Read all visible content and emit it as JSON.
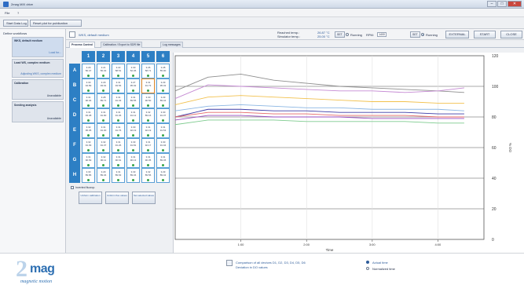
{
  "window": {
    "title": "2mag MIX drive"
  },
  "menu": [
    {
      "label": "File"
    },
    {
      "label": "?"
    }
  ],
  "toolbar": {
    "buttons": [
      {
        "label": "Start Data Log"
      },
      {
        "label": "Reset plot for publication"
      }
    ]
  },
  "left": {
    "header": "Define workflows",
    "items": [
      {
        "title": "WKS, default medium",
        "sub": "Load for...",
        "selected": true
      },
      {
        "title": "Load WS, complex medium",
        "sub": "Adjusting WKS, complex medium",
        "selected": false
      },
      {
        "title": "Calibration",
        "sub": "Unavailable",
        "selected": false
      },
      {
        "title": "Seeding analysis",
        "sub": "Unavailable",
        "selected": false
      }
    ]
  },
  "header": {
    "workflow_title": "WKS, default medium",
    "reached_temp_label": "Reached temp.:",
    "reached_temp_value": "26.87 °C",
    "simulator_temp_label": "Simulator temp.:",
    "simulator_temp_value": "25.00 °C",
    "set_label": "SET",
    "running_label": "Running",
    "rpm_label": "RPM:",
    "rpm_value": "1400",
    "set2_label": "SET",
    "running2_label": "Running",
    "buttons": [
      {
        "label": "EXTERNAL"
      },
      {
        "label": "START"
      },
      {
        "label": "CLOSE"
      }
    ]
  },
  "tabs": [
    {
      "label": "Process Control",
      "active": true
    },
    {
      "label": "Calibration / Export to SDR file",
      "active": false
    },
    {
      "label": "Log messages",
      "active": false
    }
  ],
  "plate": {
    "columns": [
      "1",
      "2",
      "3",
      "4",
      "5",
      "6"
    ],
    "rows": [
      {
        "label": "A",
        "cells": [
          [
            "3.29",
            "50.47"
          ],
          [
            "3.21",
            "56.32"
          ],
          [
            "3.22",
            "58.51"
          ],
          [
            "3.30",
            "52.36"
          ],
          [
            "3.26",
            "58.71"
          ],
          [
            "3.28",
            "55.00"
          ]
        ]
      },
      {
        "label": "B",
        "cells": [
          [
            "3.30",
            "94.89"
          ],
          [
            "3.29",
            "93.91"
          ],
          [
            "3.31",
            "93.56"
          ],
          [
            "3.27",
            "95.02"
          ],
          [
            "3.31",
            "91.73"
          ],
          [
            "3.29",
            "95.32"
          ]
        ]
      },
      {
        "label": "C",
        "cells": [
          [
            "3.31",
            "90.04"
          ],
          [
            "3.28",
            "89.71"
          ],
          [
            "3.31",
            "91.33"
          ],
          [
            "3.31",
            "89.55"
          ],
          [
            "3.30",
            "90.50"
          ],
          [
            "3.29",
            "89.42"
          ]
        ]
      },
      {
        "label": "D",
        "cells": [
          [
            "3.31",
            "93.38"
          ],
          [
            "3.31",
            "91.90"
          ],
          [
            "3.31",
            "91.36"
          ],
          [
            "3.31",
            "91.12"
          ],
          [
            "3.32",
            "89.16"
          ],
          [
            "3.30",
            "91.37"
          ]
        ]
      },
      {
        "label": "E",
        "cells": [
          [
            "3.32",
            "95.35"
          ],
          [
            "3.31",
            "91.30"
          ],
          [
            "3.31",
            "91.76"
          ],
          [
            "3.30",
            "92.19"
          ],
          [
            "3.31",
            "92.19"
          ],
          [
            "3.31",
            "91.53"
          ]
        ]
      },
      {
        "label": "F",
        "cells": [
          [
            "3.32",
            "91.09"
          ],
          [
            "3.32",
            "91.37"
          ],
          [
            "3.31",
            "91.26"
          ],
          [
            "3.33",
            "91.81"
          ],
          [
            "3.31",
            "92.17"
          ],
          [
            "3.30",
            "91.04"
          ]
        ]
      },
      {
        "label": "G",
        "cells": [
          [
            "3.31",
            "90.69"
          ],
          [
            "3.32",
            "90.11"
          ],
          [
            "3.31",
            "90.61"
          ],
          [
            "3.31",
            "90.13"
          ],
          [
            "3.31",
            "90.35"
          ],
          [
            "3.31",
            "89.45"
          ]
        ]
      },
      {
        "label": "H",
        "cells": [
          [
            "3.30",
            "89.86"
          ],
          [
            "3.29",
            "89.34"
          ],
          [
            "3.31",
            "89.63"
          ],
          [
            "3.33",
            "89.34"
          ],
          [
            "3.32",
            "89.56"
          ],
          [
            "3.29",
            "89.42"
          ]
        ]
      }
    ],
    "selected_cell": {
      "row": 1,
      "col": 4
    },
    "inverted_label": "Inverted fluorop.",
    "buttons": [
      {
        "label": "Uniform calibration"
      },
      {
        "label": "Uniform fluo values"
      },
      {
        "label": "Set selected values"
      }
    ]
  },
  "footer": {
    "brand": "2mag",
    "brand_name": "mag",
    "tagline": "magnetic motion",
    "comparison_line1": "Comparison of all devices D1, D2, D3, D4, D5, D6",
    "comparison_line2": "Deviation in DO values",
    "mode_options": [
      {
        "label": "Actual time",
        "selected": true
      },
      {
        "label": "Normalized time",
        "selected": false
      }
    ]
  },
  "chart_data": {
    "type": "line",
    "xlabel": "Time",
    "ylabel": "% DO",
    "x_ticks": [
      "1:00",
      "2:00",
      "3:00",
      "4:00"
    ],
    "ylim": [
      0,
      120
    ],
    "y_ticks": [
      0,
      20,
      40,
      60,
      80,
      100,
      120
    ],
    "x": [
      0,
      0.5,
      1,
      1.5,
      2,
      2.5,
      3,
      3.5,
      4,
      4.4
    ],
    "series": [
      {
        "color": "#8e8e8e",
        "values": [
          97,
          106,
          108,
          104,
          102,
          100,
          99,
          98,
          97,
          96
        ]
      },
      {
        "color": "#c58ad3",
        "values": [
          92,
          101,
          100,
          99,
          98,
          97,
          97,
          96,
          97,
          99
        ]
      },
      {
        "color": "#f2c14e",
        "values": [
          88,
          93,
          94,
          93,
          92,
          91,
          90,
          90,
          89,
          89
        ]
      },
      {
        "color": "#8bb6e3",
        "values": [
          84,
          87,
          88,
          87,
          86,
          86,
          85,
          85,
          85,
          84
        ]
      },
      {
        "color": "#3c3ca8",
        "values": [
          80,
          85,
          85,
          84,
          84,
          83,
          83,
          83,
          82,
          82
        ]
      },
      {
        "color": "#e46a6a",
        "values": [
          80,
          83,
          83,
          82,
          82,
          81,
          81,
          81,
          80,
          80
        ]
      },
      {
        "color": "#9a4ec0",
        "values": [
          78,
          81,
          81,
          80,
          80,
          80,
          79,
          79,
          79,
          79
        ]
      },
      {
        "color": "#7ecb8f",
        "values": [
          75,
          78,
          78,
          78,
          77,
          77,
          77,
          77,
          76,
          76
        ]
      }
    ],
    "grid": true
  }
}
